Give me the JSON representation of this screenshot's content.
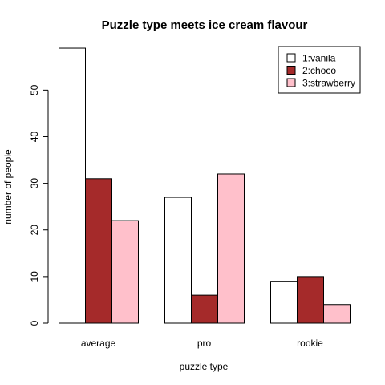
{
  "chart_data": {
    "type": "bar",
    "title": "Puzzle type meets ice cream flavour",
    "xlabel": "puzzle type",
    "ylabel": "number of people",
    "categories": [
      "average",
      "pro",
      "rookie"
    ],
    "series": [
      {
        "name": "1:vanila",
        "color": "#ffffff",
        "values": [
          59,
          27,
          9
        ]
      },
      {
        "name": "2:choco",
        "color": "#a52a2a",
        "values": [
          31,
          6,
          10
        ]
      },
      {
        "name": "3:strawberry",
        "color": "#ffc0cb",
        "values": [
          22,
          32,
          4
        ]
      }
    ],
    "yticks": [
      0,
      10,
      20,
      30,
      40,
      50
    ],
    "ylim": [
      0,
      59
    ],
    "legend_position": "top-right",
    "grid": false
  }
}
